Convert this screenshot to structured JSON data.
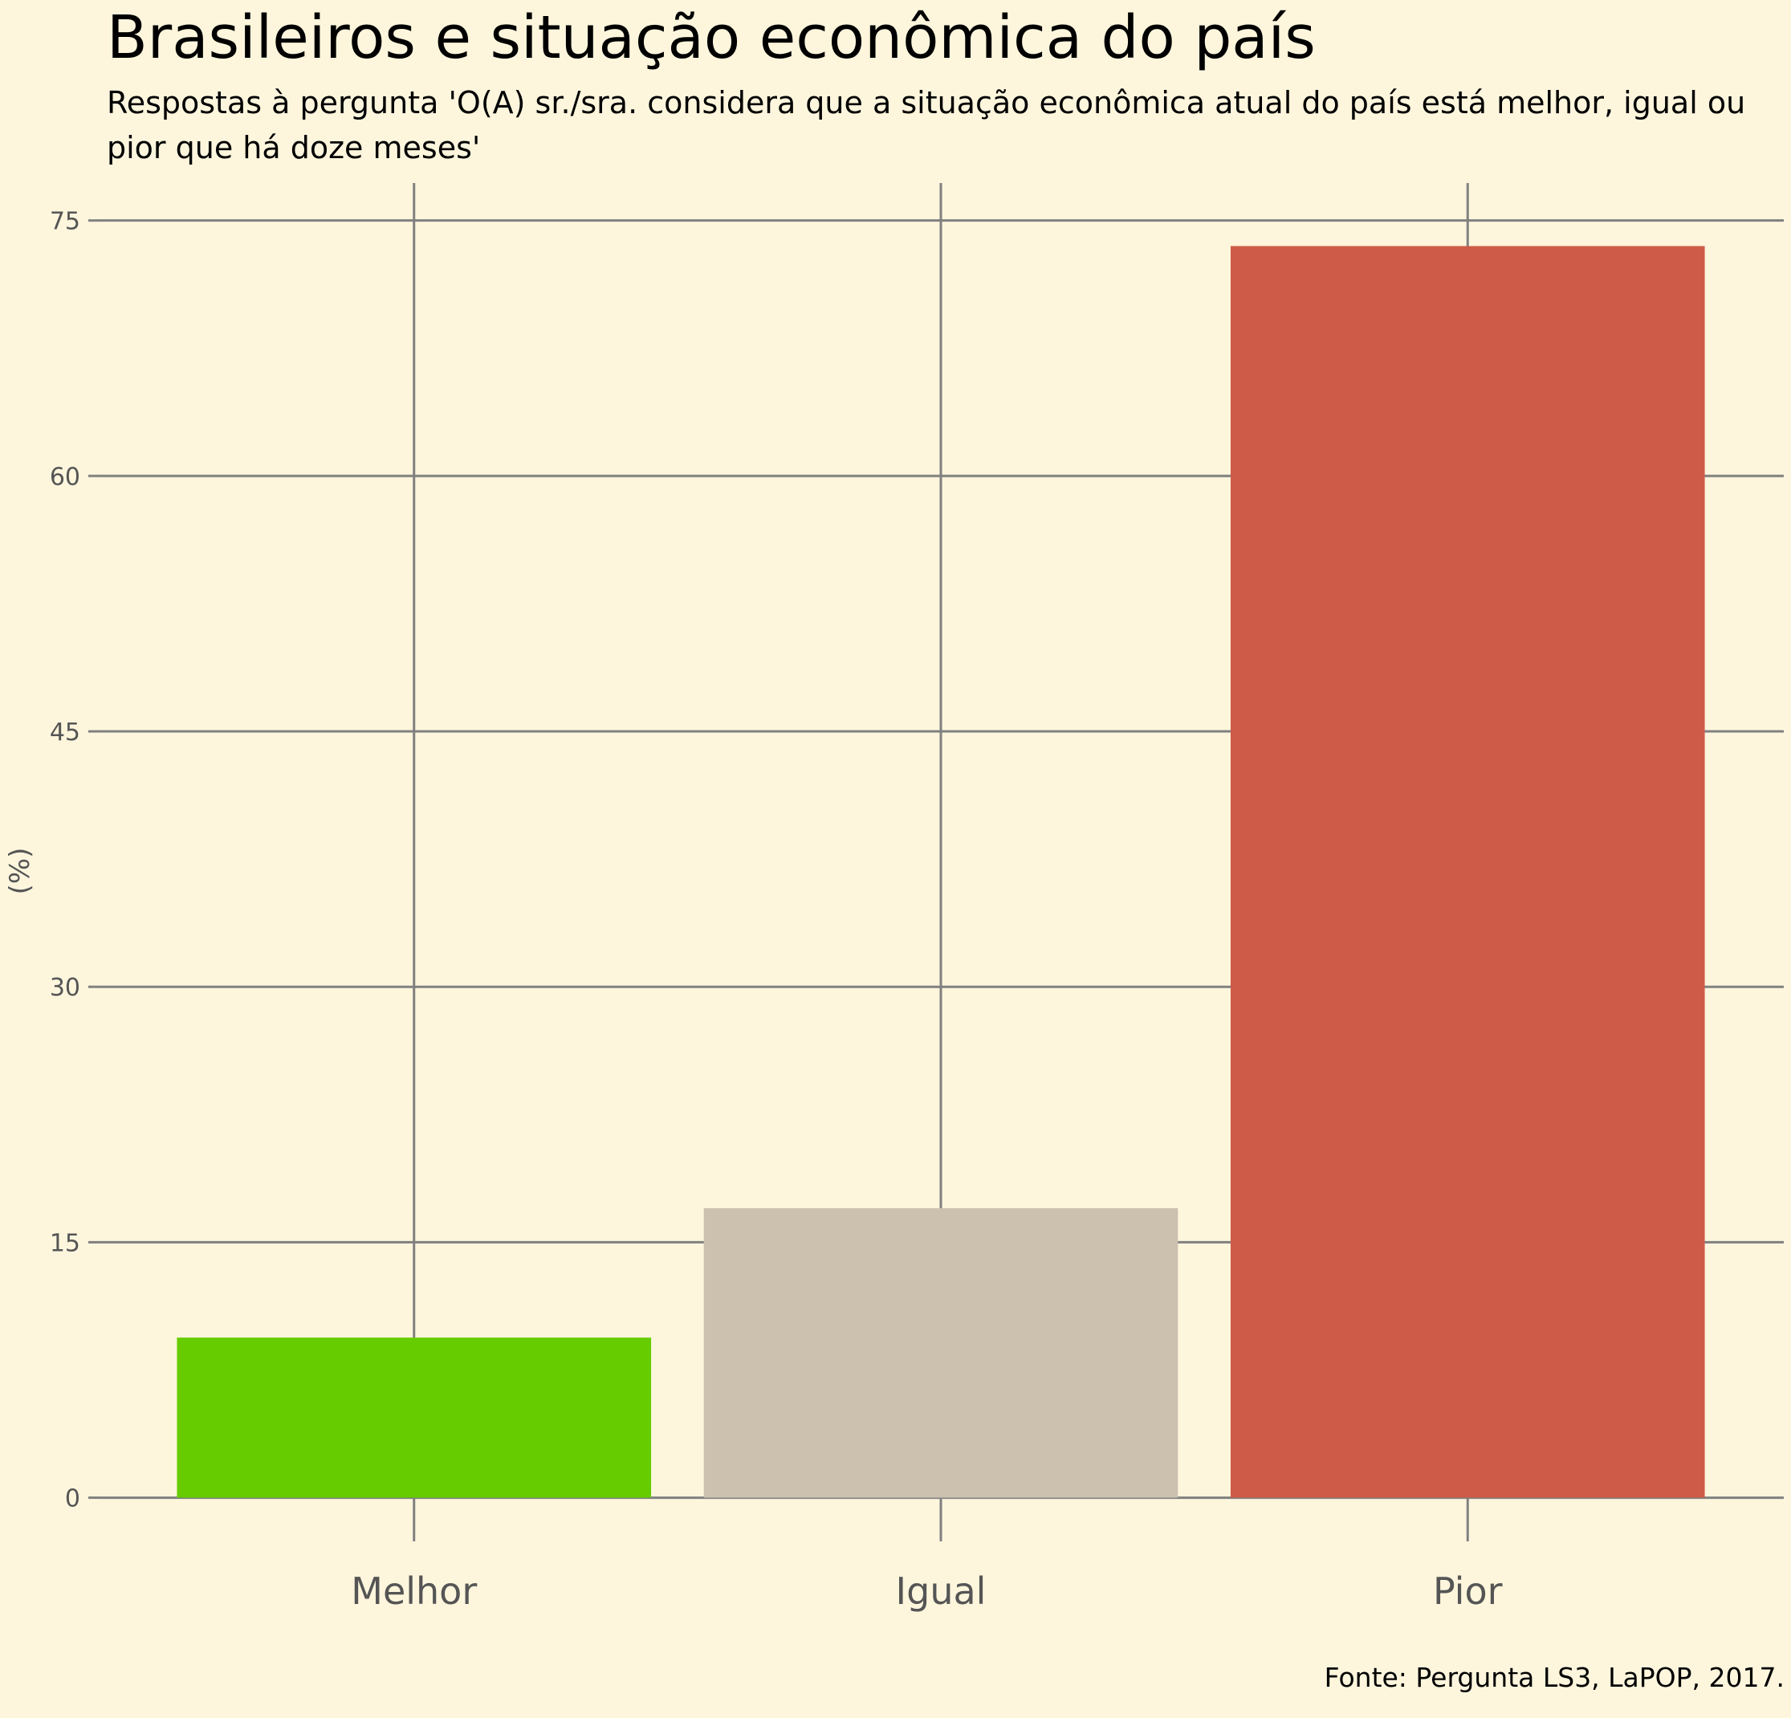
{
  "chart_data": {
    "type": "bar",
    "title": "Brasileiros e situação econômica do país",
    "subtitle": "Respostas à pergunta 'O(A) sr./sra. considera que a situação econômica atual do país está melhor, igual ou pior que há doze meses'",
    "caption": "Fonte: Pergunta LS3, LaPOP, 2017.",
    "xlabel": "",
    "ylabel": "(%)",
    "categories": [
      "Melhor",
      "Igual",
      "Pior"
    ],
    "values": [
      9.4,
      17.0,
      73.5
    ],
    "colors": [
      "#66cc00",
      "#ccc0af",
      "#cd5b48"
    ],
    "ylim": [
      -2.0,
      77.2
    ],
    "yticks": [
      0,
      15,
      30,
      45,
      60,
      75
    ],
    "grid": true,
    "legend": "none",
    "background": "#fdf6dd",
    "grid_color": "#808080"
  }
}
